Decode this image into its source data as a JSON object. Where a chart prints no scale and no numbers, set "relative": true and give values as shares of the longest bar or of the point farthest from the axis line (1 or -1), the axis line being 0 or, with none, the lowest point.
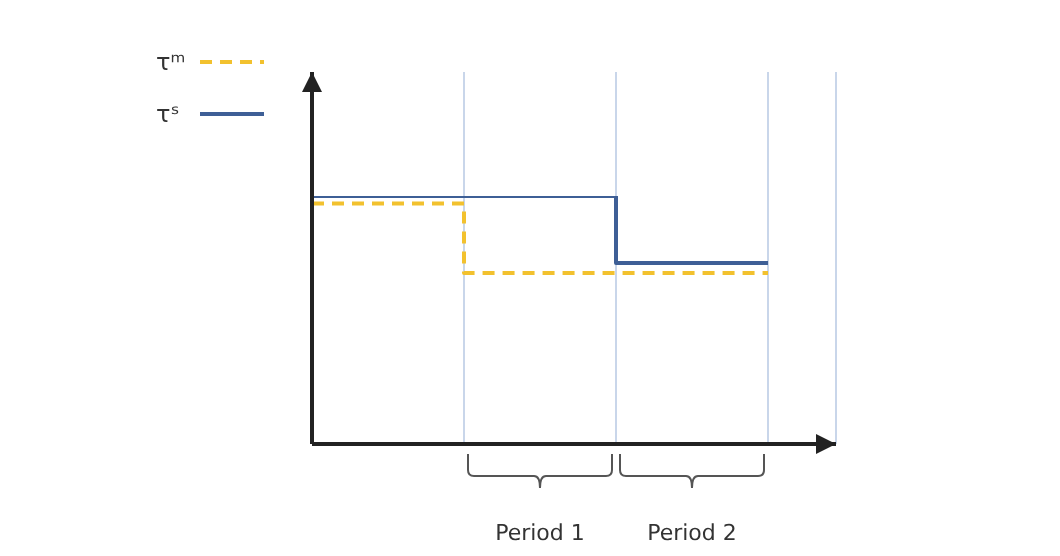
{
  "chart_data": {
    "type": "step",
    "relative": true,
    "categories": [
      null,
      null,
      null,
      null
    ],
    "series": [
      {
        "name": "τᵐ",
        "color": "#f2c12e",
        "line_style": "dashed",
        "values": [
          0.97,
          0.69,
          0.69,
          0.69
        ]
      },
      {
        "name": "τˢ",
        "color": "#3e5f96",
        "line_style": "solid",
        "values": [
          1,
          1,
          0.73,
          0.73
        ]
      }
    ],
    "grid": "x",
    "legend": "top left",
    "marker": "none",
    "tick_labels": false,
    "annotations": [
      "Period 1",
      "Period 2"
    ]
  }
}
